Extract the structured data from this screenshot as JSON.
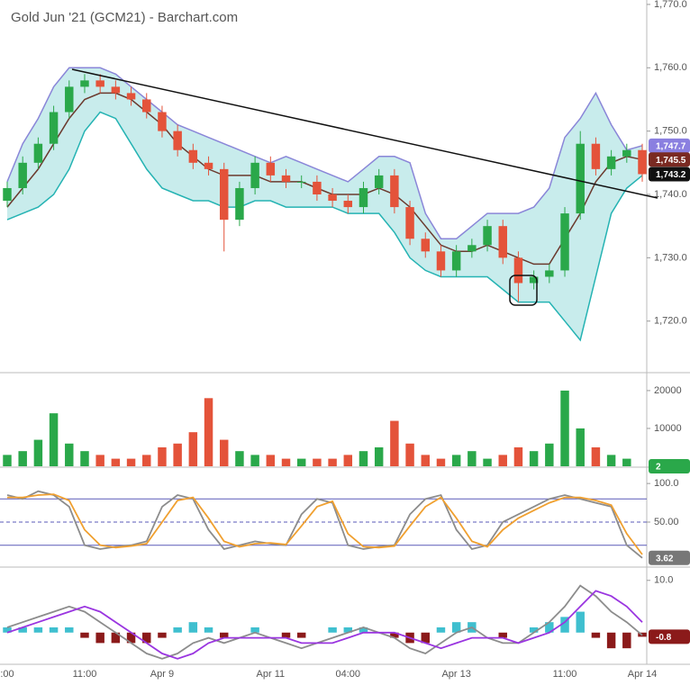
{
  "chart_data": [
    {
      "type": "candlestick",
      "title": "Gold Jun '21 (GCM21) - Barchart.com",
      "categories": [
        ":00",
        null,
        null,
        null,
        null,
        "11:00",
        null,
        null,
        null,
        null,
        "Apr 9",
        null,
        null,
        null,
        null,
        null,
        null,
        "Apr 11",
        null,
        null,
        null,
        null,
        "04:00",
        null,
        null,
        null,
        null,
        null,
        null,
        "Apr 13",
        null,
        null,
        null,
        null,
        null,
        null,
        "11:00",
        null,
        null,
        null,
        null,
        "Apr 14"
      ],
      "open": [
        1739,
        1741,
        1745,
        1748,
        1753,
        1757,
        1758,
        1757,
        1756,
        1755,
        1753,
        1750,
        1747,
        1745,
        1744,
        1736,
        1741,
        1745,
        1743,
        1742,
        1742,
        1740,
        1739,
        1738,
        1741,
        1743,
        1738,
        1733,
        1731,
        1728,
        1731,
        1732,
        1735,
        1730,
        1726,
        1727,
        1728,
        1737,
        1748,
        1744,
        1746,
        1747
      ],
      "high": [
        1742,
        1746,
        1749,
        1754,
        1758,
        1759,
        1759,
        1758,
        1757,
        1756,
        1754,
        1751,
        1748,
        1746,
        1745,
        1742,
        1746,
        1746,
        1744,
        1743,
        1743,
        1741,
        1740,
        1742,
        1744,
        1744,
        1739,
        1734,
        1732,
        1732,
        1733,
        1736,
        1736,
        1731,
        1728,
        1729,
        1738,
        1750,
        1749,
        1747,
        1748,
        1748
      ],
      "low": [
        1738,
        1740,
        1744,
        1747,
        1752,
        1756,
        1756,
        1755,
        1754,
        1752,
        1749,
        1746,
        1744,
        1743,
        1731,
        1735,
        1740,
        1742,
        1741,
        1741,
        1739,
        1738,
        1737,
        1737,
        1740,
        1737,
        1732,
        1730,
        1727,
        1727,
        1730,
        1731,
        1729,
        1723,
        1725,
        1726,
        1727,
        1736,
        1743,
        1743,
        1745,
        1742
      ],
      "close": [
        1741,
        1745,
        1748,
        1753,
        1757,
        1758,
        1757,
        1756,
        1755,
        1753,
        1750,
        1747,
        1745,
        1744,
        1736,
        1741,
        1745,
        1743,
        1742,
        1742,
        1740,
        1739,
        1738,
        1741,
        1743,
        1738,
        1733,
        1731,
        1728,
        1731,
        1732,
        1735,
        1730,
        1726,
        1727,
        1728,
        1737,
        1748,
        1744,
        1746,
        1747,
        1743.2
      ],
      "upper": [
        1742,
        1748,
        1752,
        1757,
        1760,
        1760,
        1760,
        1759,
        1757,
        1755,
        1753,
        1751,
        1750,
        1749,
        1748,
        1747,
        1746,
        1745,
        1746,
        1745,
        1744,
        1743,
        1742,
        1744,
        1746,
        1746,
        1745,
        1737,
        1733,
        1733,
        1735,
        1737,
        1737,
        1737,
        1738,
        1741,
        1749,
        1752,
        1756,
        1751,
        1747,
        1747.7
      ],
      "lower": [
        1736,
        1737,
        1738,
        1740,
        1744,
        1750,
        1753,
        1752,
        1748,
        1744,
        1741,
        1740,
        1739,
        1739,
        1738,
        1738,
        1739,
        1739,
        1738,
        1738,
        1738,
        1738,
        1737,
        1737,
        1737,
        1734,
        1730,
        1728,
        1727,
        1727,
        1727,
        1727,
        1725,
        1723,
        1723,
        1723,
        1720,
        1717,
        1727,
        1737,
        1741,
        1743
      ],
      "ma": [
        1738,
        1741,
        1744,
        1748,
        1752,
        1755,
        1756,
        1756,
        1755,
        1753,
        1751,
        1748,
        1746,
        1744,
        1743,
        1743,
        1743,
        1742,
        1742,
        1742,
        1741,
        1740,
        1740,
        1740,
        1741,
        1740,
        1738,
        1735,
        1732,
        1731,
        1731,
        1732,
        1731,
        1730,
        1729,
        1729,
        1733,
        1737,
        1742,
        1745,
        1746,
        1745.5
      ],
      "up_color": "#2aa84a",
      "down_color": "#e4533a",
      "band_color": "#c8ecec",
      "upper_color": "#8a86d8",
      "lower_color": "#25b3b3",
      "ma_color": "#6b3a2e",
      "ylim": [
        1712,
        1770.7
      ],
      "yticks": [
        {
          "value": 1720,
          "label": "1,720.0"
        },
        {
          "value": 1730,
          "label": "1,730.0"
        },
        {
          "value": 1740,
          "label": "1,740.0"
        },
        {
          "value": 1750,
          "label": "1,750.0"
        },
        {
          "value": 1760,
          "label": "1,760.0"
        },
        {
          "value": 1770,
          "label": "1,770.0"
        }
      ],
      "last_labels": [
        {
          "value": 1747.7,
          "label": "1,747.7",
          "color": "#8a7fe0"
        },
        {
          "value": 1745.5,
          "label": "1,745.5",
          "color": "#7a2a22"
        },
        {
          "value": 1743.2,
          "label": "1,743.2",
          "color": "#111111"
        }
      ]
    },
    {
      "type": "bar",
      "values": [
        3000,
        4000,
        7000,
        14000,
        6000,
        4000,
        3000,
        2000,
        2000,
        3000,
        5000,
        6000,
        9000,
        18000,
        7000,
        4000,
        3000,
        3000,
        2000,
        2000,
        2000,
        2000,
        3000,
        4000,
        5000,
        12000,
        6000,
        3000,
        2000,
        3000,
        4000,
        2000,
        3000,
        5000,
        4000,
        6000,
        20000,
        10000,
        5000,
        3000,
        2000,
        2
      ],
      "ylim": [
        0,
        24500
      ],
      "yticks": [
        10000,
        20000
      ],
      "label_color": "#2aa84a"
    },
    {
      "type": "line",
      "series": [
        {
          "color": "#8c8c8c",
          "values": [
            85,
            80,
            90,
            85,
            70,
            20,
            15,
            18,
            20,
            25,
            70,
            85,
            80,
            40,
            15,
            20,
            25,
            22,
            20,
            60,
            80,
            75,
            20,
            15,
            18,
            20,
            60,
            80,
            85,
            40,
            15,
            20,
            50,
            60,
            70,
            80,
            85,
            80,
            75,
            70,
            20,
            3.62
          ]
        },
        {
          "color": "#f0a030",
          "values": [
            82,
            82,
            85,
            86,
            78,
            40,
            20,
            17,
            19,
            22,
            50,
            78,
            82,
            55,
            25,
            18,
            22,
            23,
            21,
            45,
            70,
            77,
            35,
            18,
            17,
            19,
            45,
            70,
            82,
            55,
            25,
            18,
            40,
            55,
            65,
            75,
            82,
            82,
            78,
            72,
            35,
            8
          ]
        }
      ],
      "levels": [
        80,
        50,
        20
      ],
      "ylim": [
        -6,
        120
      ],
      "yticks": [
        {
          "value": 50,
          "label": "50.00"
        },
        {
          "value": 100,
          "label": "100.0"
        }
      ],
      "label_color": "#777777"
    },
    {
      "type": "macd",
      "series": [
        {
          "color": "#8c8c8c",
          "values": [
            1,
            2,
            3,
            4,
            5,
            4,
            2,
            0,
            -2,
            -4,
            -5,
            -4,
            -2,
            -1,
            -2,
            -1,
            0,
            -1,
            -2,
            -3,
            -2,
            -1,
            0,
            1,
            0,
            -1,
            -3,
            -4,
            -2,
            0,
            1,
            -1,
            -2,
            -2,
            0,
            2,
            5,
            9,
            7,
            4,
            2,
            -0.5
          ]
        },
        {
          "color": "#9a35e0",
          "values": [
            0,
            1,
            2,
            3,
            4,
            5,
            4,
            2,
            0,
            -2,
            -4,
            -5,
            -4,
            -2,
            -1,
            -1,
            -1,
            -1,
            -1,
            -2,
            -2,
            -2,
            -1,
            0,
            0,
            0,
            -1,
            -2,
            -3,
            -2,
            -1,
            -1,
            -1,
            -2,
            -1,
            0,
            2,
            5,
            8,
            7,
            5,
            2
          ]
        }
      ],
      "histogram": [
        1,
        1,
        1,
        1,
        1,
        -1,
        -2,
        -2,
        -2,
        -2,
        -1,
        1,
        2,
        1,
        -1,
        0,
        1,
        0,
        -1,
        -1,
        0,
        1,
        1,
        1,
        0,
        -1,
        -2,
        -2,
        1,
        2,
        2,
        0,
        -1,
        0,
        1,
        2,
        3,
        4,
        -1,
        -3,
        -3,
        -0.8
      ],
      "pos_color": "#3fbfcf",
      "neg_color": "#8b1a1a",
      "ylim": [
        -5.9,
        12.2
      ],
      "yticks": [
        {
          "value": 10,
          "label": "10.0"
        }
      ],
      "label_color": "#9a35e0"
    }
  ]
}
